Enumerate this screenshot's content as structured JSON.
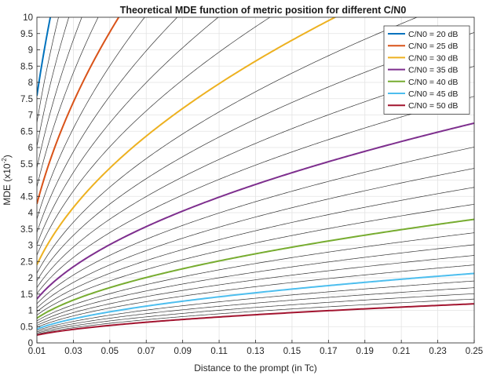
{
  "chart_data": {
    "type": "line",
    "title": "Theoretical MDE function of metric position for different C/N0",
    "xlabel": "Distance to the prompt (in Tc)",
    "ylabel_main": "MDE (x10",
    "ylabel_exp": "-2",
    "ylabel_close": ")",
    "xlim": [
      0.01,
      0.25
    ],
    "ylim": [
      0,
      10
    ],
    "x_ticks": [
      "0.01",
      "0.03",
      "0.05",
      "0.07",
      "0.09",
      "0.11",
      "0.13",
      "0.15",
      "0.17",
      "0.19",
      "0.21",
      "0.23",
      "0.25"
    ],
    "y_ticks": [
      "0",
      "0.5",
      "1",
      "1.5",
      "2",
      "2.5",
      "3",
      "3.5",
      "4",
      "4.5",
      "5",
      "5.5",
      "6",
      "6.5",
      "7",
      "7.5",
      "8",
      "8.5",
      "9",
      "9.5",
      "10"
    ],
    "grid": true,
    "legend_position": "top-right",
    "model": {
      "form": "MDE = k * x^0.5 (MDE in units of 1e-2, x in Tc)",
      "exponent": 0.5,
      "k_at_50dB": 2.4,
      "cn0_range_dB": [
        20,
        50
      ],
      "cn0_step_dB": 1
    },
    "series": [
      {
        "name": "C/N0 = 20 dB",
        "cn0": 20,
        "color": "#0072BD",
        "values": [
          [
            0.01,
            7.6
          ],
          [
            0.015,
            9.3
          ],
          [
            0.0173,
            10
          ]
        ]
      },
      {
        "name": "C/N0 = 25 dB",
        "cn0": 25,
        "color": "#D95319",
        "values": [
          [
            0.01,
            4.3
          ],
          [
            0.03,
            7.4
          ],
          [
            0.05,
            9.6
          ],
          [
            0.054,
            10
          ]
        ]
      },
      {
        "name": "C/N0 = 30 dB",
        "cn0": 30,
        "color": "#EDB120",
        "values": [
          [
            0.01,
            2.4
          ],
          [
            0.05,
            5.4
          ],
          [
            0.09,
            7.2
          ],
          [
            0.13,
            8.7
          ],
          [
            0.17,
            9.9
          ]
        ]
      },
      {
        "name": "C/N0 = 35 dB",
        "cn0": 35,
        "color": "#7E2F8E",
        "values": [
          [
            0.01,
            1.35
          ],
          [
            0.05,
            3.0
          ],
          [
            0.09,
            4.05
          ],
          [
            0.13,
            4.9
          ],
          [
            0.17,
            5.5
          ],
          [
            0.21,
            6.2
          ],
          [
            0.25,
            6.8
          ]
        ]
      },
      {
        "name": "C/N0 = 40 dB",
        "cn0": 40,
        "color": "#77AC30",
        "values": [
          [
            0.01,
            0.76
          ],
          [
            0.05,
            1.7
          ],
          [
            0.09,
            2.3
          ],
          [
            0.13,
            2.75
          ],
          [
            0.17,
            3.1
          ],
          [
            0.21,
            3.5
          ],
          [
            0.25,
            3.8
          ]
        ]
      },
      {
        "name": "C/N0 = 45 dB",
        "cn0": 45,
        "color": "#4DBEEE",
        "values": [
          [
            0.01,
            0.43
          ],
          [
            0.05,
            0.96
          ],
          [
            0.09,
            1.29
          ],
          [
            0.13,
            1.55
          ],
          [
            0.17,
            1.77
          ],
          [
            0.21,
            1.97
          ],
          [
            0.25,
            2.15
          ]
        ]
      },
      {
        "name": "C/N0 = 50 dB",
        "cn0": 50,
        "color": "#A2142F",
        "values": [
          [
            0.01,
            0.24
          ],
          [
            0.05,
            0.54
          ],
          [
            0.09,
            0.72
          ],
          [
            0.13,
            0.87
          ],
          [
            0.17,
            1.0
          ],
          [
            0.21,
            1.1
          ],
          [
            0.25,
            1.2
          ]
        ]
      }
    ],
    "background_curves": {
      "color": "#333333",
      "description": "C/N0 from 20 to 50 dB in 1 dB steps"
    }
  }
}
